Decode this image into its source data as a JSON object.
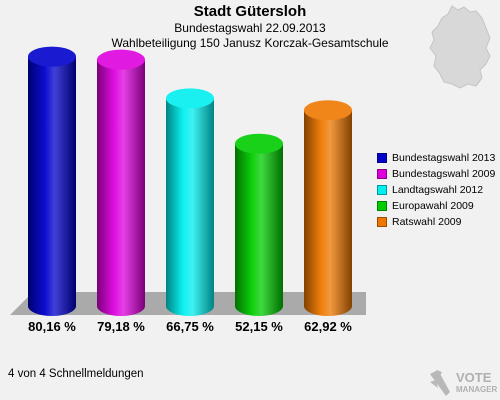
{
  "header": {
    "title": "Stadt Gütersloh",
    "subtitle1": "Bundestagswahl 22.09.2013",
    "subtitle2": "Wahlbeteiligung 150 Janusz Korczak-Gesamtschule"
  },
  "chart_data": {
    "type": "bar",
    "style": "3d-cylinder",
    "title": "Stadt Gütersloh",
    "categories": [
      "Bundestagswahl 2013",
      "Bundestagswahl 2009",
      "Landtagswahl 2012",
      "Europawahl 2009",
      "Ratswahl 2009"
    ],
    "values": [
      80.16,
      79.18,
      66.75,
      52.15,
      62.92
    ],
    "value_labels": [
      "80,16 %",
      "79,18 %",
      "66,75 %",
      "52,15 %",
      "62,92 %"
    ],
    "colors": [
      "#0000cc",
      "#dd00dd",
      "#00eeee",
      "#00cc00",
      "#ee7700"
    ],
    "ylim": [
      0,
      90
    ],
    "grid": false,
    "legend_position": "right"
  },
  "legend": {
    "items": [
      {
        "label": "Bundestagswahl 2013",
        "color": "#0000cc"
      },
      {
        "label": "Bundestagswahl 2009",
        "color": "#dd00dd"
      },
      {
        "label": "Landtagswahl 2012",
        "color": "#00eeee"
      },
      {
        "label": "Europawahl 2009",
        "color": "#00cc00"
      },
      {
        "label": "Ratswahl 2009",
        "color": "#ee7700"
      }
    ]
  },
  "footer": {
    "text": "4 von 4 Schnellmeldungen"
  },
  "logo": {
    "line1": "VOTE",
    "line2": "MANAGER"
  },
  "icons": {
    "map": "germany-map-icon",
    "logo": "vote-manager-logo-icon"
  }
}
